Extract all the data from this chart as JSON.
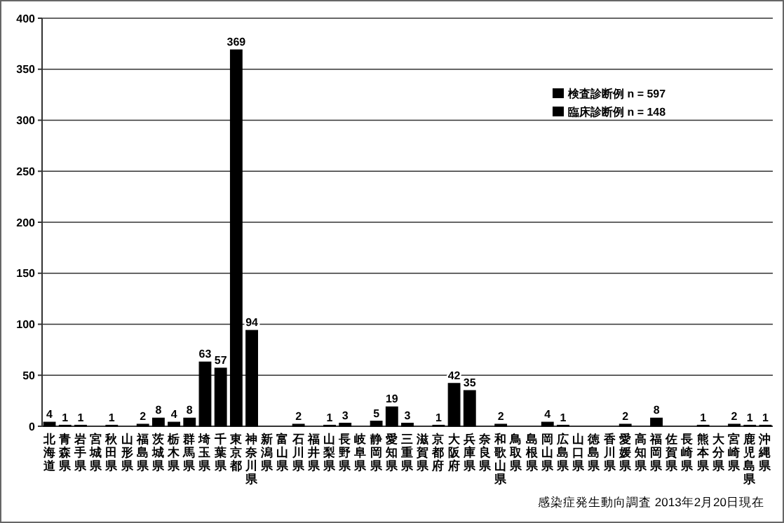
{
  "chart_data": {
    "type": "bar",
    "categories": [
      "北海道",
      "青森県",
      "岩手県",
      "宮城県",
      "秋田県",
      "山形県",
      "福島県",
      "茨城県",
      "栃木県",
      "群馬県",
      "埼玉県",
      "千葉県",
      "東京都",
      "神奈川県",
      "新潟県",
      "富山県",
      "石川県",
      "福井県",
      "山梨県",
      "長野県",
      "岐阜県",
      "静岡県",
      "愛知県",
      "三重県",
      "滋賀県",
      "京都府",
      "大阪府",
      "兵庫県",
      "奈良県",
      "和歌山県",
      "鳥取県",
      "島根県",
      "岡山県",
      "広島県",
      "山口県",
      "徳島県",
      "香川県",
      "愛媛県",
      "高知県",
      "福岡県",
      "佐賀県",
      "長崎県",
      "熊本県",
      "大分県",
      "宮崎県",
      "鹿児島県",
      "沖縄県"
    ],
    "values": [
      4,
      1,
      1,
      0,
      1,
      0,
      2,
      8,
      4,
      8,
      63,
      57,
      369,
      94,
      0,
      0,
      2,
      0,
      1,
      3,
      0,
      5,
      19,
      3,
      0,
      1,
      42,
      35,
      0,
      2,
      0,
      0,
      4,
      1,
      0,
      0,
      0,
      2,
      0,
      8,
      0,
      0,
      1,
      0,
      2,
      1,
      1
    ],
    "value_labels": [
      "4",
      "1",
      "1",
      null,
      "1",
      null,
      "2",
      "8",
      "4",
      "8",
      "63",
      "57",
      "369",
      "94",
      null,
      null,
      "2",
      null,
      "1",
      "3",
      null,
      "5",
      "19",
      "3",
      null,
      "1",
      "42",
      "35",
      null,
      "2",
      null,
      null,
      "4",
      "1",
      null,
      null,
      null,
      "2",
      null,
      "8",
      null,
      null,
      "1",
      null,
      "2",
      "1",
      "1"
    ],
    "color": "#000000",
    "ylim": [
      0,
      400
    ],
    "yticks": [
      0,
      50,
      100,
      150,
      200,
      250,
      300,
      350,
      400
    ],
    "grid": "y",
    "annotations": [
      "検査診断例 n = 597",
      "臨床診断例 n = 148",
      "感染症発生動向調査 2013年2月20日現在"
    ]
  }
}
